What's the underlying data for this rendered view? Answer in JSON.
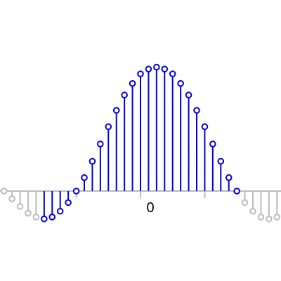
{
  "chart_data": {
    "type": "stem",
    "title": "",
    "xlabel": "",
    "ylabel": "",
    "xlim": [
      -17.5,
      17.5
    ],
    "ylim": [
      -0.5,
      1.55
    ],
    "grid": false,
    "legend": "none",
    "xticks": [
      0
    ],
    "xtick_labels": [
      "0"
    ],
    "minor_xticks": [
      -8,
      8
    ],
    "highlight_range": [
      -12,
      12
    ],
    "colors": {
      "active": "#0000dd",
      "inactive": "#bbbbbb",
      "axis": "#bbbbbb",
      "text": "#000000"
    },
    "x": [
      -18,
      -17,
      -16,
      -15,
      -14,
      -13,
      -12,
      -11,
      -10,
      -9,
      -8,
      -7,
      -6,
      -5,
      -4,
      -3,
      -2,
      -1,
      0,
      1,
      2,
      3,
      4,
      5,
      6,
      7,
      8,
      9,
      10,
      11,
      12,
      13,
      14,
      15,
      16,
      17,
      18
    ],
    "values": [
      0.08,
      0.0,
      -0.08,
      -0.16,
      -0.23,
      -0.27,
      -0.29,
      -0.27,
      -0.21,
      -0.12,
      0.0,
      0.14,
      0.31,
      0.49,
      0.67,
      0.84,
      1.0,
      1.12,
      1.22,
      1.27,
      1.29,
      1.27,
      1.22,
      1.12,
      1.0,
      0.84,
      0.67,
      0.49,
      0.31,
      0.14,
      0.0,
      -0.12,
      -0.21,
      -0.27,
      -0.29,
      -0.27,
      -0.23
    ]
  }
}
